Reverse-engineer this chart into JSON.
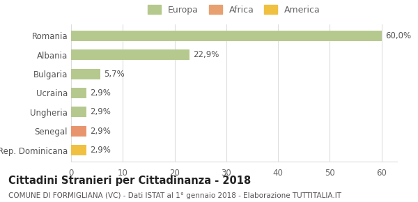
{
  "categories": [
    "Rep. Dominicana",
    "Senegal",
    "Ungheria",
    "Ucraina",
    "Bulgaria",
    "Albania",
    "Romania"
  ],
  "values": [
    2.9,
    2.9,
    2.9,
    2.9,
    5.7,
    22.9,
    60.0
  ],
  "labels": [
    "2,9%",
    "2,9%",
    "2,9%",
    "2,9%",
    "5,7%",
    "22,9%",
    "60,0%"
  ],
  "colors": [
    "#f0c040",
    "#e8956d",
    "#b5c98e",
    "#b5c98e",
    "#b5c98e",
    "#b5c98e",
    "#b5c98e"
  ],
  "legend_labels": [
    "Europa",
    "Africa",
    "America"
  ],
  "legend_colors": [
    "#b5c98e",
    "#e8a070",
    "#f0c040"
  ],
  "title": "Cittadini Stranieri per Cittadinanza - 2018",
  "subtitle": "COMUNE DI FORMIGLIANA (VC) - Dati ISTAT al 1° gennaio 2018 - Elaborazione TUTTITALIA.IT",
  "xlim": [
    0,
    63
  ],
  "xticks": [
    0,
    10,
    20,
    30,
    40,
    50,
    60
  ],
  "background_color": "#ffffff",
  "bar_height": 0.55,
  "grid_color": "#dddddd",
  "label_fontsize": 8.5,
  "title_fontsize": 10.5,
  "subtitle_fontsize": 7.5,
  "tick_fontsize": 8.5,
  "legend_fontsize": 9
}
